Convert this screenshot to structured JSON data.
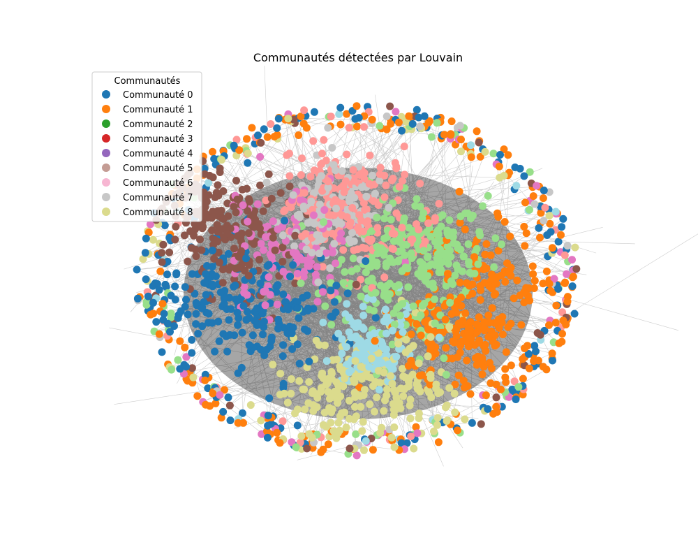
{
  "figure": {
    "title": "Communautés détectées par Louvain"
  },
  "legend": {
    "title": "Communautés",
    "placement": "top-left",
    "entries": [
      {
        "label": "Communauté 0",
        "color": "#1f77b4"
      },
      {
        "label": "Communauté 1",
        "color": "#ff7f0e"
      },
      {
        "label": "Communauté 2",
        "color": "#2ca02c"
      },
      {
        "label": "Communauté 3",
        "color": "#d62728"
      },
      {
        "label": "Communauté 4",
        "color": "#9467bd"
      },
      {
        "label": "Communauté 5",
        "color": "#c49c94"
      },
      {
        "label": "Communauté 6",
        "color": "#f7b6d2"
      },
      {
        "label": "Communauté 7",
        "color": "#c7c7c7"
      },
      {
        "label": "Communauté 8",
        "color": "#dbdb8d"
      }
    ]
  },
  "graph": {
    "edge_color": "#000000",
    "node_palette": [
      "#1f77b4",
      "#ff7f0e",
      "#98df8a",
      "#ff9896",
      "#e377c2",
      "#8c564b",
      "#dbdb8d",
      "#c7c7c7",
      "#9edae5",
      "#aec7e8"
    ]
  }
}
